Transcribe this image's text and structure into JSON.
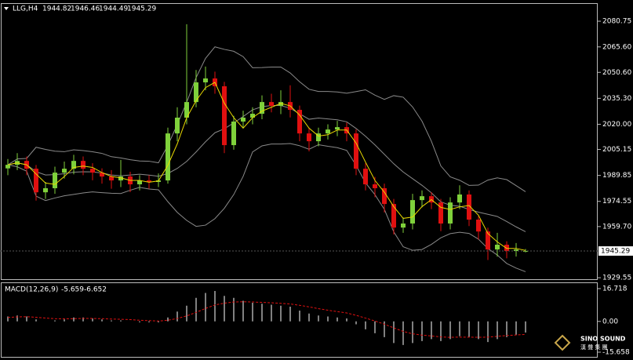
{
  "chart_data": {
    "type": "candlestick",
    "symbol": "LLG,H4",
    "open": [
      1994.0,
      1996.1,
      1998.4,
      1993.8,
      1979.9,
      1982.3,
      1991.5,
      1993.8,
      1998.4,
      1993.8,
      1991.5,
      1989.2,
      1986.9,
      1989.2,
      1984.6,
      1986.9,
      1986.0,
      1986.9,
      2014.6,
      2023.9,
      2033.1,
      2044.7,
      2047.0,
      2042.4,
      2007.7,
      2021.6,
      2023.9,
      2026.2,
      2033.1,
      2030.8,
      2033.1,
      2028.5,
      2014.6,
      2010.0,
      2014.6,
      2016.9,
      2018.3,
      2014.6,
      1993.8,
      1984.6,
      1982.3,
      1973.0,
      1959.1,
      1961.5,
      1975.3,
      1977.6,
      1973.9,
      1961.5,
      1973.9,
      1978.6,
      1963.8,
      1956.8,
      1946.2,
      1949.0,
      1945.3,
      1944.82
    ],
    "high": [
      1999.5,
      2003.0,
      2001.0,
      1996.0,
      1986.0,
      1995.0,
      1998.0,
      2002.0,
      2001.0,
      1997.0,
      1994.0,
      1993.0,
      1999.0,
      1992.0,
      1990.0,
      1990.0,
      1991.0,
      2018.0,
      2030.0,
      2079.0,
      2052.0,
      2054.0,
      2051.0,
      2045.0,
      2025.0,
      2028.0,
      2030.0,
      2037.0,
      2038.0,
      2040.0,
      2043.0,
      2031.0,
      2018.0,
      2018.0,
      2020.0,
      2022.0,
      2021.0,
      2017.0,
      1997.0,
      1989.0,
      1985.0,
      1976.0,
      1965.0,
      1979.0,
      1981.0,
      1980.0,
      1976.0,
      1977.0,
      1984.0,
      1981.0,
      1966.0,
      1959.0,
      1956.0,
      1951.0,
      1950.0,
      1946.46
    ],
    "low": [
      1990.0,
      1993.0,
      1990.0,
      1975.0,
      1976.0,
      1979.0,
      1988.0,
      1990.5,
      1990.0,
      1987.0,
      1985.0,
      1982.0,
      1983.0,
      1980.0,
      1981.0,
      1982.0,
      1983.0,
      1985.0,
      2010.0,
      2020.0,
      2030.0,
      2040.0,
      2038.0,
      2003.0,
      2005.0,
      2018.0,
      2020.0,
      2023.0,
      2027.0,
      2026.0,
      2024.0,
      2010.0,
      2004.0,
      2007.0,
      2011.0,
      2013.0,
      2010.0,
      1990.0,
      1981.0,
      1977.0,
      1968.0,
      1955.0,
      1956.0,
      1958.0,
      1971.0,
      1970.0,
      1957.0,
      1958.0,
      1970.0,
      1960.0,
      1952.0,
      1940.0,
      1942.0,
      1941.0,
      1942.0,
      1944.49
    ],
    "close": [
      1996.1,
      1998.4,
      1993.8,
      1979.9,
      1982.3,
      1991.5,
      1993.8,
      1998.4,
      1993.8,
      1991.5,
      1989.2,
      1986.9,
      1989.2,
      1984.6,
      1986.9,
      1986.0,
      1986.9,
      2014.6,
      2023.9,
      2033.1,
      2044.7,
      2047.0,
      2042.4,
      2007.7,
      2021.6,
      2023.9,
      2026.2,
      2033.1,
      2030.8,
      2033.1,
      2028.5,
      2014.6,
      2010.0,
      2014.6,
      2016.9,
      2018.3,
      2014.6,
      1993.8,
      1984.6,
      1982.3,
      1973.0,
      1959.1,
      1961.5,
      1975.3,
      1977.6,
      1973.9,
      1961.5,
      1973.9,
      1978.6,
      1963.8,
      1956.8,
      1946.2,
      1949.0,
      1945.3,
      1946.2,
      1945.29
    ],
    "up_color": "#7fd13b",
    "down_color": "#e01010",
    "ylim": [
      1928.2,
      2091.4
    ],
    "yticks": [
      2080.75,
      {
        "value": 2065.6,
        "label": "2065.60"
      },
      {
        "value": 2050.6,
        "label": "2050.60"
      },
      {
        "value": 2035.3,
        "label": "2035.30"
      },
      {
        "value": 2020.0,
        "label": "2020.00"
      },
      2005.15,
      1989.85,
      1974.55,
      {
        "value": 1959.7,
        "label": "1959.70"
      },
      1929.55
    ],
    "macd": {
      "label": "MACD(12,26,9)",
      "current": -5.659,
      "current_signal": -6.652,
      "values": [
        2.5,
        3,
        2.5,
        1,
        0,
        0.5,
        1,
        2,
        2,
        1.5,
        1,
        0.5,
        0.5,
        0,
        -0.5,
        -0.5,
        -0.5,
        2,
        5,
        8,
        12,
        14.5,
        15.5,
        13,
        12,
        10.5,
        9.5,
        9,
        8.5,
        8,
        7.5,
        5.5,
        4,
        3,
        2.5,
        2,
        1.5,
        -1.5,
        -4,
        -6,
        -8,
        -11,
        -12,
        -11,
        -10,
        -9,
        -10,
        -9,
        -7.5,
        -8,
        -9,
        -10.5,
        -9,
        -8,
        -7,
        -5.659
      ],
      "signal": [
        2,
        2.3,
        2.4,
        2.1,
        1.7,
        1.4,
        1.3,
        1.4,
        1.5,
        1.5,
        1.4,
        1.2,
        1.1,
        0.9,
        0.6,
        0.4,
        0.2,
        0.6,
        1.5,
        2.8,
        4.6,
        6.6,
        8.4,
        9.3,
        9.9,
        10.0,
        9.9,
        9.7,
        9.5,
        9.2,
        8.9,
        8.2,
        7.4,
        6.5,
        5.7,
        5.0,
        4.3,
        3.1,
        1.7,
        0.2,
        -1.4,
        -3.3,
        -5.1,
        -6.3,
        -7.0,
        -7.4,
        -7.9,
        -8.1,
        -8.0,
        -8.0,
        -8.1,
        -8.0,
        -7.6,
        -7.2,
        -6.9,
        -6.652
      ],
      "bar_color": "#ffffff",
      "signal_color": "#e01010",
      "ylim": [
        -18.06,
        19.5
      ],
      "yticks": [
        16.718,
        {
          "value": 0,
          "label": "0.00"
        },
        -15.658
      ]
    },
    "logo": {
      "name": "SINO SOUND",
      "sub": "漢 聲 集 團"
    }
  }
}
